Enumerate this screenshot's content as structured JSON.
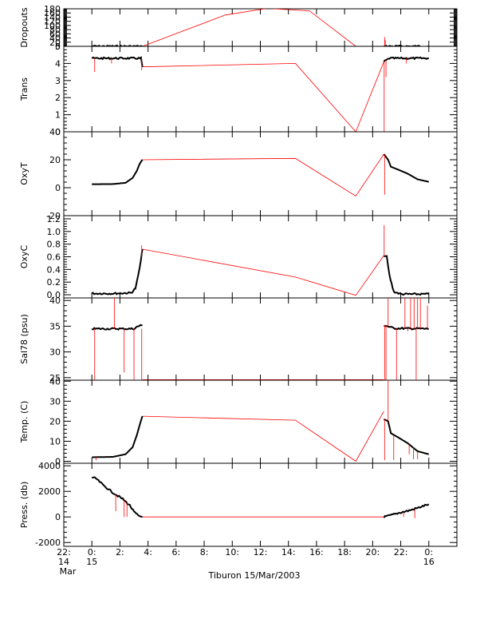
{
  "chart_data": {
    "type": "line",
    "title": "",
    "xlabel": "Tiburon 15/Mar/2003",
    "x_unit": "hours from 15 Mar 2003 00:00",
    "xlim": [
      -2,
      26
    ],
    "x_ticks": [
      {
        "value": -2,
        "label": "22:",
        "sub1": "14",
        "sub2": "Mar"
      },
      {
        "value": 0,
        "label": "0:",
        "sub1": "15",
        "sub2": ""
      },
      {
        "value": 2,
        "label": "2:",
        "sub1": "",
        "sub2": ""
      },
      {
        "value": 4,
        "label": "4:",
        "sub1": "",
        "sub2": ""
      },
      {
        "value": 6,
        "label": "6:",
        "sub1": "",
        "sub2": ""
      },
      {
        "value": 8,
        "label": "8:",
        "sub1": "",
        "sub2": ""
      },
      {
        "value": 10,
        "label": "10:",
        "sub1": "",
        "sub2": ""
      },
      {
        "value": 12,
        "label": "12:",
        "sub1": "",
        "sub2": ""
      },
      {
        "value": 14,
        "label": "14:",
        "sub1": "",
        "sub2": ""
      },
      {
        "value": 16,
        "label": "16:",
        "sub1": "",
        "sub2": ""
      },
      {
        "value": 18,
        "label": "18:",
        "sub1": "",
        "sub2": ""
      },
      {
        "value": 20,
        "label": "20:",
        "sub1": "",
        "sub2": ""
      },
      {
        "value": 22,
        "label": "22:",
        "sub1": "",
        "sub2": ""
      },
      {
        "value": 24,
        "label": "0:",
        "sub1": "16",
        "sub2": ""
      }
    ],
    "colors": {
      "gap_line": "#ff0000",
      "data": "#000000",
      "axes": "#000000"
    },
    "panels": [
      {
        "ylabel": "Dropouts",
        "ylim": [
          0,
          180
        ],
        "yticks": [
          0,
          20,
          40,
          60,
          80,
          100,
          120,
          140,
          160,
          180
        ],
        "gap_line": [
          [
            3.6,
            0
          ],
          [
            9.5,
            150
          ],
          [
            12.5,
            182
          ],
          [
            15.5,
            170
          ],
          [
            18.8,
            0
          ],
          [
            20.8,
            0
          ]
        ],
        "segments": [
          {
            "points": [
              [
                0.0,
                0
              ],
              [
                3.6,
                0
              ]
            ],
            "noisy": true
          },
          {
            "points": [
              [
                20.8,
                0
              ],
              [
                24.0,
                0
              ]
            ],
            "noisy": true
          }
        ],
        "spikes": [
          [
            20.85,
            0,
            45
          ],
          [
            20.9,
            0,
            30
          ]
        ]
      },
      {
        "ylabel": "Trans",
        "ylim": [
          0,
          5
        ],
        "yticks": [
          0,
          1,
          2,
          3,
          4,
          5
        ],
        "gap_line": [
          [
            3.6,
            3.8
          ],
          [
            14.5,
            4.0
          ],
          [
            18.8,
            0
          ],
          [
            20.8,
            4.1
          ]
        ],
        "segments": [
          {
            "points": [
              [
                0.0,
                4.3
              ],
              [
                3.5,
                4.3
              ],
              [
                3.6,
                3.8
              ]
            ],
            "noisy": true
          },
          {
            "points": [
              [
                20.8,
                4.1
              ],
              [
                21.2,
                4.3
              ],
              [
                24.0,
                4.3
              ]
            ],
            "noisy": true
          }
        ],
        "spikes": [
          [
            0.2,
            4.3,
            3.5
          ],
          [
            1.4,
            4.3,
            4.0
          ],
          [
            3.55,
            4.3,
            3.6
          ],
          [
            20.82,
            4.1,
            0.0
          ],
          [
            20.95,
            4.2,
            3.2
          ],
          [
            22.4,
            4.3,
            4.0
          ]
        ]
      },
      {
        "ylabel": "OxyT",
        "ylim": [
          -20,
          40
        ],
        "yticks": [
          -20,
          0,
          20,
          40
        ],
        "gap_line": [
          [
            3.6,
            20
          ],
          [
            14.5,
            21
          ],
          [
            18.8,
            -6
          ],
          [
            20.8,
            24
          ]
        ],
        "segments": [
          {
            "points": [
              [
                0.0,
                2.5
              ],
              [
                1.5,
                2.6
              ],
              [
                2.4,
                3.5
              ],
              [
                2.9,
                7
              ],
              [
                3.2,
                12
              ],
              [
                3.4,
                17
              ],
              [
                3.6,
                20
              ]
            ],
            "noisy": false
          },
          {
            "points": [
              [
                20.8,
                24
              ],
              [
                21.1,
                20
              ],
              [
                21.3,
                15
              ],
              [
                21.8,
                13
              ],
              [
                22.5,
                10
              ],
              [
                23.2,
                6
              ],
              [
                24.0,
                4.2
              ]
            ],
            "noisy": false
          }
        ],
        "spikes": [
          [
            20.85,
            24,
            -5
          ]
        ]
      },
      {
        "ylabel": "OxyC",
        "ylim": [
          -0.05,
          1.25
        ],
        "yticks": [
          0.0,
          0.2,
          0.4,
          0.6,
          0.8,
          1.0,
          1.2
        ],
        "ytick_labels": [
          "0.0",
          "0.2",
          "0.4",
          "0.6",
          "0.8",
          "1.0",
          "1.2"
        ],
        "gap_line": [
          [
            3.6,
            0.72
          ],
          [
            14.5,
            0.28
          ],
          [
            18.8,
            -0.01
          ],
          [
            20.8,
            0.62
          ]
        ],
        "segments": [
          {
            "points": [
              [
                0.0,
                0.02
              ],
              [
                1.5,
                0.02
              ],
              [
                2.8,
                0.03
              ],
              [
                3.1,
                0.1
              ],
              [
                3.3,
                0.3
              ],
              [
                3.5,
                0.55
              ],
              [
                3.6,
                0.72
              ]
            ],
            "noisy": true
          },
          {
            "points": [
              [
                20.8,
                0.62
              ],
              [
                21.0,
                0.6
              ],
              [
                21.2,
                0.3
              ],
              [
                21.5,
                0.05
              ],
              [
                22.0,
                0.01
              ],
              [
                24.0,
                0.01
              ]
            ],
            "noisy": true
          }
        ],
        "spikes": [
          [
            3.55,
            0.6,
            0.78
          ],
          [
            20.82,
            0.62,
            1.1
          ]
        ]
      },
      {
        "ylabel": "Sal78 (psu)",
        "ylim": [
          24.5,
          40.5
        ],
        "yticks": [
          25,
          30,
          35,
          40
        ],
        "gap_line": [
          [
            3.6,
            24.6
          ],
          [
            20.8,
            24.6
          ]
        ],
        "segments": [
          {
            "points": [
              [
                0.0,
                34.5
              ],
              [
                3.0,
                34.5
              ],
              [
                3.3,
                35.0
              ],
              [
                3.6,
                35.2
              ]
            ],
            "noisy": true
          },
          {
            "points": [
              [
                20.8,
                35.2
              ],
              [
                21.5,
                34.6
              ],
              [
                24.0,
                34.5
              ]
            ],
            "noisy": true
          }
        ],
        "spikes": [
          [
            0.2,
            34.5,
            24.6
          ],
          [
            1.6,
            34.5,
            40.5
          ],
          [
            2.3,
            34.5,
            26.0
          ],
          [
            3.0,
            34.5,
            24.6
          ],
          [
            3.55,
            34.5,
            24.6
          ],
          [
            20.85,
            35.2,
            24.6
          ],
          [
            20.95,
            35.2,
            24.6
          ],
          [
            21.1,
            35.0,
            40.5
          ],
          [
            21.7,
            34.5,
            24.6
          ],
          [
            22.3,
            34.5,
            40.5
          ],
          [
            22.5,
            34.5,
            34.0
          ],
          [
            22.7,
            34.5,
            40.5
          ],
          [
            22.95,
            34.5,
            40.5
          ],
          [
            23.1,
            34.5,
            24.6
          ],
          [
            23.2,
            34.5,
            40.5
          ],
          [
            23.4,
            34.5,
            40.5
          ],
          [
            23.9,
            34.5,
            39.0
          ]
        ]
      },
      {
        "ylabel": "Temp. (C)",
        "ylim": [
          -1,
          40.5
        ],
        "yticks": [
          0,
          10,
          20,
          30,
          40
        ],
        "gap_line": [
          [
            3.6,
            22.5
          ],
          [
            14.5,
            20.5
          ],
          [
            18.8,
            0
          ],
          [
            20.8,
            25
          ]
        ],
        "segments": [
          {
            "points": [
              [
                0.0,
                2.0
              ],
              [
                1.5,
                2.2
              ],
              [
                2.4,
                3.5
              ],
              [
                2.9,
                7
              ],
              [
                3.2,
                13
              ],
              [
                3.4,
                18
              ],
              [
                3.6,
                22.5
              ]
            ],
            "noisy": false
          },
          {
            "points": [
              [
                20.8,
                21
              ],
              [
                21.1,
                20
              ],
              [
                21.3,
                14
              ],
              [
                21.8,
                12
              ],
              [
                22.5,
                9
              ],
              [
                23.2,
                5
              ],
              [
                24.0,
                3.5
              ]
            ],
            "noisy": false
          }
        ],
        "spikes": [
          [
            0.3,
            2.0,
            0.5
          ],
          [
            20.85,
            21,
            0.5
          ],
          [
            21.1,
            20,
            40.5
          ],
          [
            21.5,
            13,
            0.5
          ],
          [
            22.6,
            8.5,
            3.5
          ],
          [
            22.9,
            7,
            1.0
          ],
          [
            23.2,
            5,
            1.0
          ]
        ]
      },
      {
        "ylabel": "Press. (db)",
        "ylim": [
          -2300,
          4200
        ],
        "yticks": [
          -2000,
          0,
          2000,
          4000
        ],
        "gap_line": [
          [
            3.6,
            0
          ],
          [
            20.8,
            0
          ]
        ],
        "segments": [
          {
            "points": [
              [
                0.0,
                3100
              ],
              [
                0.3,
                3000
              ],
              [
                0.8,
                2500
              ],
              [
                1.5,
                1900
              ],
              [
                2.2,
                1400
              ],
              [
                2.7,
                900
              ],
              [
                3.0,
                400
              ],
              [
                3.3,
                100
              ],
              [
                3.6,
                0
              ]
            ],
            "noisy": true
          },
          {
            "points": [
              [
                20.8,
                0
              ],
              [
                21.2,
                100
              ],
              [
                21.5,
                200
              ],
              [
                22.0,
                350
              ],
              [
                22.6,
                500
              ],
              [
                23.2,
                700
              ],
              [
                24.0,
                1000
              ]
            ],
            "noisy": true
          }
        ],
        "spikes": [
          [
            1.7,
            1800,
            450
          ],
          [
            2.3,
            1300,
            0
          ],
          [
            2.5,
            1100,
            0
          ],
          [
            22.2,
            350,
            0
          ],
          [
            23.0,
            600,
            -100
          ]
        ]
      }
    ]
  }
}
